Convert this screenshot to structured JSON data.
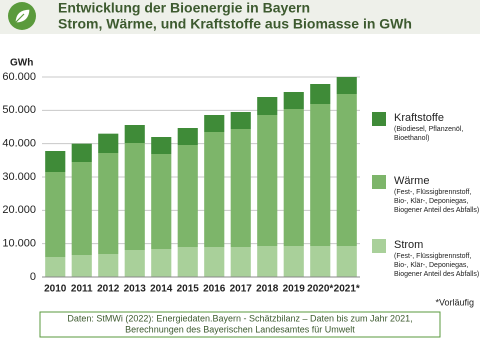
{
  "chart_data": {
    "type": "stacked_bar",
    "title": [
      "Entwicklung der Bioenergie in Bayern",
      "Strom, Wärme, und Kraftstoffe aus Biomasse in GWh"
    ],
    "y_unit_label": "GWh",
    "categories": [
      "2010",
      "2011",
      "2012",
      "2013",
      "2014",
      "2015",
      "2016",
      "2017",
      "2018",
      "2019",
      "2020*",
      "2021*"
    ],
    "series": [
      {
        "name": "Strom",
        "description": [
          "(Fest-, Flüssigbrennstoff,",
          "Bio-, Klär-, Deponiegas,",
          "Biogener Anteil des Abfalls)"
        ],
        "color": "#a9d09a",
        "values": [
          6000,
          6600,
          6900,
          8100,
          8400,
          9000,
          9000,
          9000,
          9300,
          9300,
          9300,
          9300
        ]
      },
      {
        "name": "Wärme",
        "description": [
          "(Fest-, Flüssigbrennstoff,",
          "Bio-, Klär-, Deponiegas,",
          "Biogener Anteil des Abfalls)"
        ],
        "color": "#7db56a",
        "values": [
          25500,
          27900,
          30300,
          32100,
          28500,
          30600,
          34500,
          35400,
          39300,
          41100,
          42600,
          45600
        ]
      },
      {
        "name": "Kraftstoffe",
        "description": [
          "(Biodiesel, Pflanzenöl,",
          "Bioethanol)"
        ],
        "color": "#3f8b38",
        "values": [
          6300,
          5500,
          5800,
          5400,
          5100,
          5100,
          5100,
          5100,
          5400,
          5100,
          6000,
          5100
        ]
      }
    ],
    "ylim": [
      0,
      60000
    ],
    "yticks": [
      {
        "value": 0,
        "label": "0"
      },
      {
        "value": 10000,
        "label": "10.000"
      },
      {
        "value": 20000,
        "label": "20.000"
      },
      {
        "value": 30000,
        "label": "30.000"
      },
      {
        "value": 40000,
        "label": "40.000"
      },
      {
        "value": 50000,
        "label": "50.000"
      },
      {
        "value": 60000,
        "label": "60.000"
      }
    ],
    "grid": true,
    "footnote": "*Vorläufig",
    "source": [
      "Daten: StMWi (2022): Energiedaten.Bayern - Schätzbilanz – Daten bis zum Jahr 2021,",
      "Berechnungen des Bayerischen Landesamtes für Umwelt"
    ]
  }
}
